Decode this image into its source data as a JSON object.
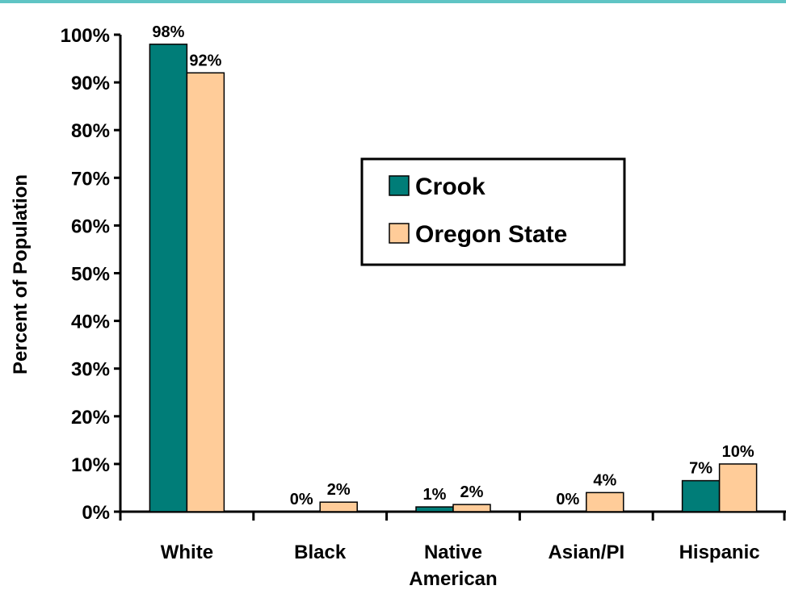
{
  "chart_data": {
    "type": "bar",
    "ylabel": "Percent of Population",
    "ylim": [
      0,
      100
    ],
    "yticks": [
      "0%",
      "10%",
      "20%",
      "30%",
      "40%",
      "50%",
      "60%",
      "70%",
      "80%",
      "90%",
      "100%"
    ],
    "categories": [
      [
        "White"
      ],
      [
        "Black"
      ],
      [
        "Native",
        "American"
      ],
      [
        "Asian/PI"
      ],
      [
        "Hispanic"
      ]
    ],
    "series": [
      {
        "name": "Crook",
        "color": "#007d78",
        "values": [
          98,
          0,
          1,
          0,
          6.5
        ],
        "labels": [
          "98%",
          "0%",
          "1%",
          "0%",
          "7%"
        ]
      },
      {
        "name": "Oregon State",
        "color": "#ffcc99",
        "values": [
          92,
          2,
          1.5,
          4,
          10
        ],
        "labels": [
          "92%",
          "2%",
          "2%",
          "4%",
          "10%"
        ]
      }
    ],
    "legend_position": "center-right",
    "grid": false
  },
  "colors": {
    "top_border": "#5fc4c4",
    "axis": "#000000"
  }
}
